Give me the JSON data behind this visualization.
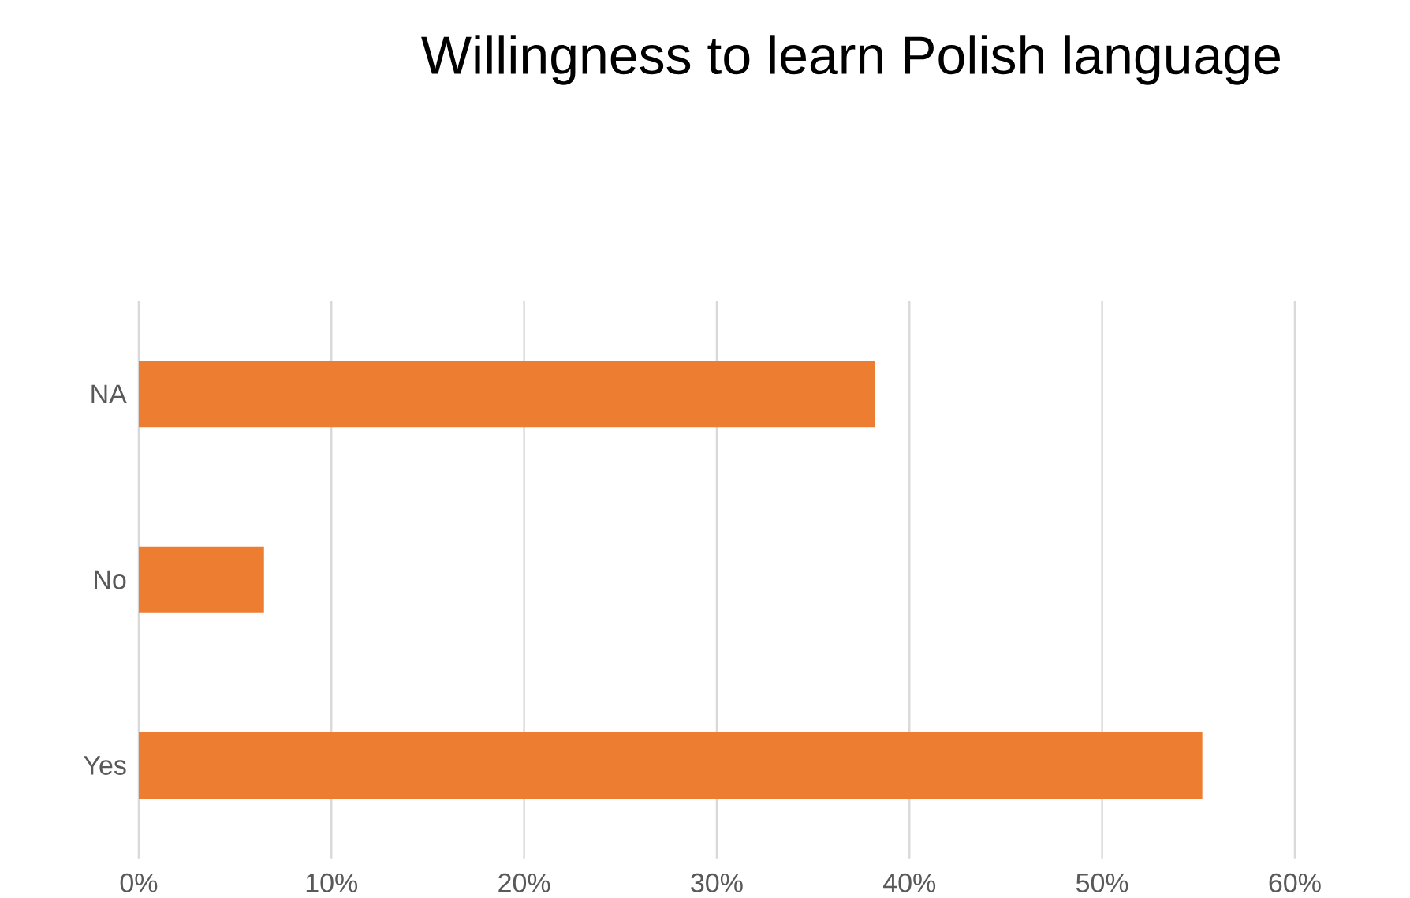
{
  "chart_data": {
    "type": "bar",
    "orientation": "horizontal",
    "title": "Willingness to learn Polish language",
    "categories": [
      "NA",
      "No",
      "Yes"
    ],
    "values": [
      38.2,
      6.5,
      55.2
    ],
    "color": "#ed7d31",
    "xlim": [
      0,
      60
    ],
    "xticks": [
      {
        "value": 0,
        "label": "0%"
      },
      {
        "value": 10,
        "label": "10%"
      },
      {
        "value": 20,
        "label": "20%"
      },
      {
        "value": 30,
        "label": "30%"
      },
      {
        "value": 40,
        "label": "40%"
      },
      {
        "value": 50,
        "label": "50%"
      },
      {
        "value": 60,
        "label": "60%"
      }
    ],
    "grid": "x"
  }
}
